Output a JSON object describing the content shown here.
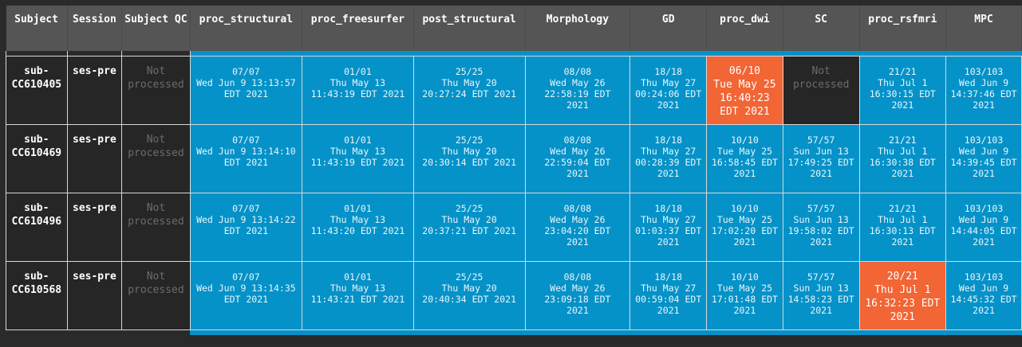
{
  "columns": [
    "Subject",
    "Session",
    "Subject QC",
    "proc_structural",
    "proc_freesurfer",
    "post_structural",
    "Morphology",
    "GD",
    "proc_dwi",
    "SC",
    "proc_rsfmri",
    "MPC"
  ],
  "rows": [
    {
      "subject": "sub-CC610405",
      "subject_lines": [
        "sub-",
        "CC610405"
      ],
      "session": "ses-pre",
      "qc": [
        "Not",
        "processed"
      ],
      "cells": [
        {
          "status": "ok",
          "lines": [
            "07/07",
            "Wed Jun 9 13:13:57",
            "EDT 2021"
          ]
        },
        {
          "status": "ok",
          "lines": [
            "01/01",
            "Thu May 13",
            "11:43:19 EDT 2021"
          ]
        },
        {
          "status": "ok",
          "lines": [
            "25/25",
            "Thu May 20",
            "20:27:24 EDT 2021"
          ]
        },
        {
          "status": "ok",
          "lines": [
            "08/08",
            "Wed May 26",
            "22:58:19 EDT",
            "2021"
          ]
        },
        {
          "status": "ok",
          "lines": [
            "18/18",
            "Thu May 27",
            "00:24:06 EDT",
            "2021"
          ]
        },
        {
          "status": "warn",
          "lines": [
            "06/10",
            "Tue May 25",
            "16:40:23",
            "EDT 2021"
          ]
        },
        {
          "status": "np",
          "lines": [
            "Not",
            "processed"
          ]
        },
        {
          "status": "ok",
          "lines": [
            "21/21",
            "Thu Jul 1",
            "16:30:15 EDT",
            "2021"
          ]
        },
        {
          "status": "ok",
          "lines": [
            "103/103",
            "Wed Jun 9",
            "14:37:46 EDT",
            "2021"
          ]
        }
      ]
    },
    {
      "subject": "sub-CC610469",
      "subject_lines": [
        "sub-",
        "CC610469"
      ],
      "session": "ses-pre",
      "qc": [
        "Not",
        "processed"
      ],
      "cells": [
        {
          "status": "ok",
          "lines": [
            "07/07",
            "Wed Jun 9 13:14:10",
            "EDT 2021"
          ]
        },
        {
          "status": "ok",
          "lines": [
            "01/01",
            "Thu May 13",
            "11:43:19 EDT 2021"
          ]
        },
        {
          "status": "ok",
          "lines": [
            "25/25",
            "Thu May 20",
            "20:30:14 EDT 2021"
          ]
        },
        {
          "status": "ok",
          "lines": [
            "08/08",
            "Wed May 26",
            "22:59:04 EDT",
            "2021"
          ]
        },
        {
          "status": "ok",
          "lines": [
            "18/18",
            "Thu May 27",
            "00:28:39 EDT",
            "2021"
          ]
        },
        {
          "status": "ok",
          "lines": [
            "10/10",
            "Tue May 25",
            "16:58:45 EDT",
            "2021"
          ]
        },
        {
          "status": "ok",
          "lines": [
            "57/57",
            "Sun Jun 13",
            "17:49:25 EDT",
            "2021"
          ]
        },
        {
          "status": "ok",
          "lines": [
            "21/21",
            "Thu Jul 1",
            "16:30:38 EDT",
            "2021"
          ]
        },
        {
          "status": "ok",
          "lines": [
            "103/103",
            "Wed Jun 9",
            "14:39:45 EDT",
            "2021"
          ]
        }
      ]
    },
    {
      "subject": "sub-CC610496",
      "subject_lines": [
        "sub-",
        "CC610496"
      ],
      "session": "ses-pre",
      "qc": [
        "Not",
        "processed"
      ],
      "cells": [
        {
          "status": "ok",
          "lines": [
            "07/07",
            "Wed Jun 9 13:14:22",
            "EDT 2021"
          ]
        },
        {
          "status": "ok",
          "lines": [
            "01/01",
            "Thu May 13",
            "11:43:20 EDT 2021"
          ]
        },
        {
          "status": "ok",
          "lines": [
            "25/25",
            "Thu May 20",
            "20:37:21 EDT 2021"
          ]
        },
        {
          "status": "ok",
          "lines": [
            "08/08",
            "Wed May 26",
            "23:04:20 EDT",
            "2021"
          ]
        },
        {
          "status": "ok",
          "lines": [
            "18/18",
            "Thu May 27",
            "01:03:37 EDT",
            "2021"
          ]
        },
        {
          "status": "ok",
          "lines": [
            "10/10",
            "Tue May 25",
            "17:02:20 EDT",
            "2021"
          ]
        },
        {
          "status": "ok",
          "lines": [
            "57/57",
            "Sun Jun 13",
            "19:58:02 EDT",
            "2021"
          ]
        },
        {
          "status": "ok",
          "lines": [
            "21/21",
            "Thu Jul 1",
            "16:30:13 EDT",
            "2021"
          ]
        },
        {
          "status": "ok",
          "lines": [
            "103/103",
            "Wed Jun 9",
            "14:44:05 EDT",
            "2021"
          ]
        }
      ]
    },
    {
      "subject": "sub-CC610568",
      "subject_lines": [
        "sub-",
        "CC610568"
      ],
      "session": "ses-pre",
      "qc": [
        "Not",
        "processed"
      ],
      "cells": [
        {
          "status": "ok",
          "lines": [
            "07/07",
            "Wed Jun 9 13:14:35",
            "EDT 2021"
          ]
        },
        {
          "status": "ok",
          "lines": [
            "01/01",
            "Thu May 13",
            "11:43:21 EDT 2021"
          ]
        },
        {
          "status": "ok",
          "lines": [
            "25/25",
            "Thu May 20",
            "20:40:34 EDT 2021"
          ]
        },
        {
          "status": "ok",
          "lines": [
            "08/08",
            "Wed May 26",
            "23:09:18 EDT",
            "2021"
          ]
        },
        {
          "status": "ok",
          "lines": [
            "18/18",
            "Thu May 27",
            "00:59:04 EDT",
            "2021"
          ]
        },
        {
          "status": "ok",
          "lines": [
            "10/10",
            "Tue May 25",
            "17:01:48 EDT",
            "2021"
          ]
        },
        {
          "status": "ok",
          "lines": [
            "57/57",
            "Sun Jun 13",
            "14:58:23 EDT",
            "2021"
          ]
        },
        {
          "status": "warn",
          "lines": [
            "20/21",
            "Thu Jul 1",
            "16:32:23 EDT",
            "2021"
          ]
        },
        {
          "status": "ok",
          "lines": [
            "103/103",
            "Wed Jun 9",
            "14:45:32 EDT",
            "2021"
          ]
        }
      ]
    }
  ],
  "colors": {
    "ok": "#0592c8",
    "warn": "#f26535",
    "not_processed": "#262626",
    "header": "#555555"
  }
}
